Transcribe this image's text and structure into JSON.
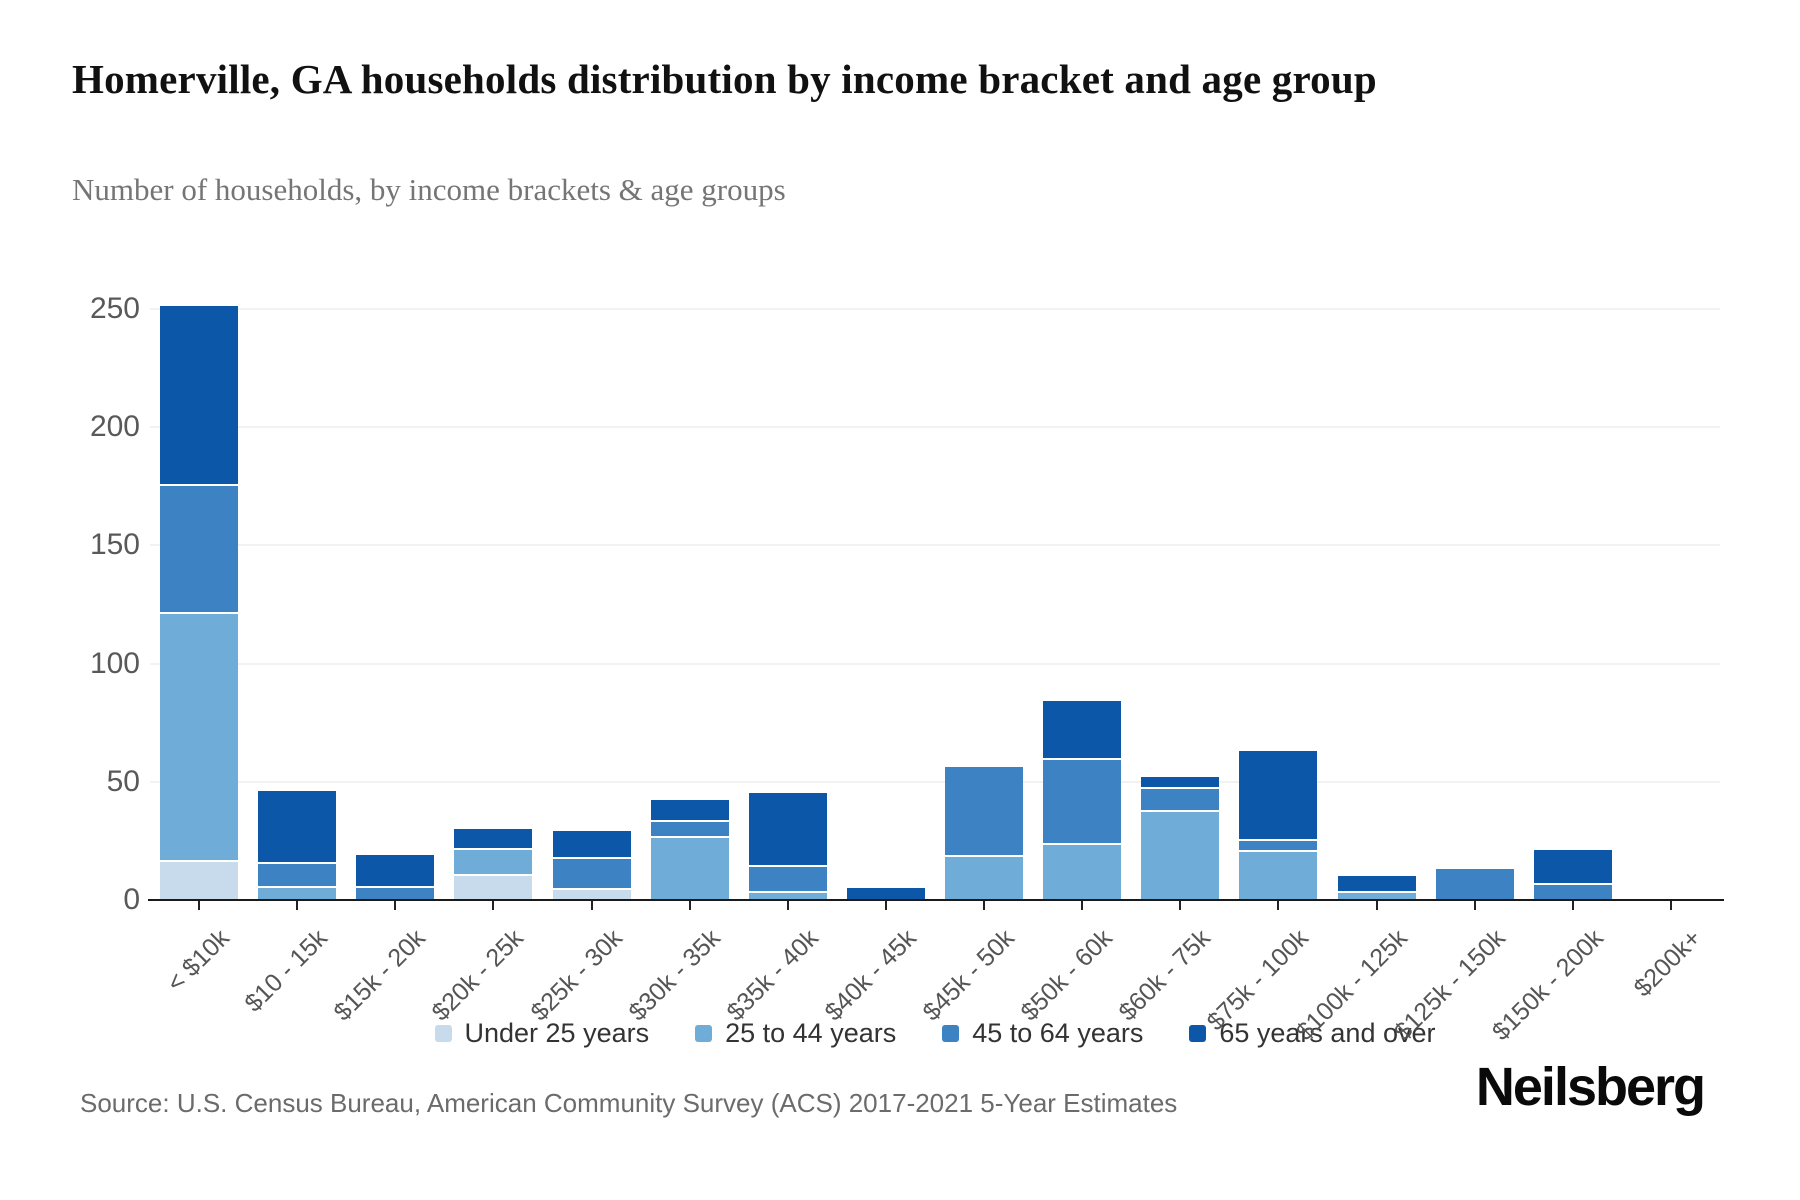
{
  "header": {
    "title": "Homerville, GA households distribution by income bracket and age group",
    "subtitle": "Number of households, by income brackets & age groups"
  },
  "chart_data": {
    "type": "bar",
    "stacked": true,
    "title": "Homerville, GA households distribution by income bracket and age group",
    "subtitle": "Number of households, by income brackets & age groups",
    "categories": [
      "< $10k",
      "$10 - 15k",
      "$15k - 20k",
      "$20k - 25k",
      "$25k - 30k",
      "$30k - 35k",
      "$35k - 40k",
      "$40k - 45k",
      "$45k - 50k",
      "$50k - 60k",
      "$60k - 75k",
      "$75k - 100k",
      "$100k - 125k",
      "$125k - 150k",
      "$150k - 200k",
      "$200k+"
    ],
    "series": [
      {
        "name": "Under 25 years",
        "color": "#c7dbec",
        "values": [
          17,
          0,
          0,
          11,
          5,
          0,
          0,
          0,
          0,
          0,
          0,
          0,
          0,
          0,
          0,
          0
        ]
      },
      {
        "name": "25 to 44 years",
        "color": "#6fadd8",
        "values": [
          105,
          6,
          0,
          11,
          0,
          27,
          4,
          0,
          19,
          24,
          38,
          21,
          4,
          0,
          0,
          0
        ]
      },
      {
        "name": "45 to 64 years",
        "color": "#3d82c3",
        "values": [
          54,
          10,
          6,
          0,
          13,
          7,
          11,
          0,
          38,
          36,
          10,
          5,
          0,
          14,
          7,
          0
        ]
      },
      {
        "name": "65 years and over",
        "color": "#0d57a8",
        "values": [
          76,
          31,
          14,
          9,
          12,
          9,
          31,
          6,
          0,
          25,
          5,
          38,
          7,
          0,
          15,
          0
        ]
      }
    ],
    "stack_totals": [
      252,
      47,
      20,
      31,
      30,
      43,
      46,
      6,
      57,
      85,
      53,
      64,
      11,
      14,
      22,
      0
    ],
    "xlabel": "",
    "ylabel": "",
    "yticks": [
      0,
      50,
      100,
      150,
      200,
      250
    ],
    "ylim": [
      0,
      253.8
    ],
    "grid": true,
    "legend_position": "bottom"
  },
  "footer": {
    "source": "Source: U.S. Census Bureau, American Community Survey (ACS) 2017-2021 5-Year Estimates",
    "logo_text": "Neilsberg"
  },
  "colors": {
    "grid": "#f2f2f2",
    "axis_line": "#1a1a1a",
    "tick": "#222222",
    "axis_label": "#595959",
    "legend_label": "#333333",
    "subtitle": "#757575",
    "source": "#6b6b6b"
  }
}
